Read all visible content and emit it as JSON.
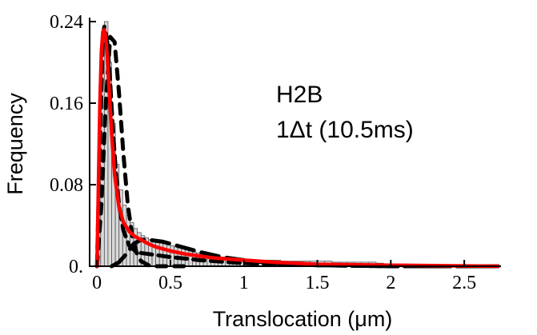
{
  "chart_data": {
    "type": "bar",
    "title": "",
    "xlabel": "Translocation (μm)",
    "ylabel": "Frequency",
    "xlim": [
      -0.05,
      2.75
    ],
    "ylim": [
      0,
      0.24
    ],
    "x_ticks": [
      {
        "value": 0,
        "label": "0"
      },
      {
        "value": 0.5,
        "label": "0.5"
      },
      {
        "value": 1,
        "label": "1"
      },
      {
        "value": 1.5,
        "label": "1.5"
      },
      {
        "value": 2,
        "label": "2"
      },
      {
        "value": 2.5,
        "label": "2.5"
      }
    ],
    "y_ticks": [
      {
        "value": 0,
        "label": "0."
      },
      {
        "value": 0.08,
        "label": "0.08"
      },
      {
        "value": 0.16,
        "label": "0.16"
      },
      {
        "value": 0.24,
        "label": "0.24"
      }
    ],
    "annotation_lines": [
      "H2B",
      "1Δt (10.5ms)"
    ],
    "colors": {
      "bars_fill": "#d9d9d9",
      "bars_stroke": "#555555",
      "fit_total": "#ff0000",
      "fit_components": "#000000"
    },
    "histogram": {
      "bin_width": 0.025,
      "bin_starts": [
        0.0,
        0.025,
        0.05,
        0.075,
        0.1,
        0.125,
        0.15,
        0.175,
        0.2,
        0.225,
        0.25,
        0.275,
        0.3,
        0.325,
        0.35,
        0.375,
        0.4,
        0.425,
        0.45,
        0.475,
        0.5,
        0.525,
        0.55,
        0.575,
        0.6,
        0.625,
        0.65,
        0.675,
        0.7,
        0.725,
        0.75,
        0.775,
        0.8,
        0.825,
        0.85,
        0.875,
        0.9,
        0.925,
        0.95,
        0.975,
        1.0,
        1.05,
        1.1,
        1.15,
        1.2,
        1.25,
        1.3,
        1.35,
        1.4,
        1.45,
        1.5,
        1.55,
        1.6,
        1.65,
        1.7,
        1.75,
        1.8,
        1.85,
        1.9,
        1.95,
        2.0,
        2.1,
        2.2,
        2.3,
        2.4,
        2.5,
        2.6,
        2.7
      ],
      "frequencies": [
        0.06,
        0.2,
        0.24,
        0.2,
        0.14,
        0.1,
        0.075,
        0.06,
        0.05,
        0.043,
        0.037,
        0.033,
        0.03,
        0.028,
        0.026,
        0.025,
        0.024,
        0.023,
        0.022,
        0.021,
        0.02,
        0.019,
        0.018,
        0.017,
        0.016,
        0.015,
        0.014,
        0.013,
        0.012,
        0.011,
        0.011,
        0.01,
        0.01,
        0.009,
        0.009,
        0.009,
        0.008,
        0.008,
        0.008,
        0.007,
        0.007,
        0.006,
        0.006,
        0.006,
        0.006,
        0.005,
        0.005,
        0.005,
        0.005,
        0.005,
        0.005,
        0.005,
        0.004,
        0.004,
        0.004,
        0.004,
        0.004,
        0.004,
        0.003,
        0.002,
        0.002,
        0.002,
        0.001,
        0.001,
        0.001,
        0.001,
        0.001,
        0.001
      ]
    },
    "series": [
      {
        "style": "dashed-black-1",
        "x": [
          0,
          0.02,
          0.04,
          0.05,
          0.07,
          0.09,
          0.11,
          0.13,
          0.15,
          0.18,
          0.22,
          0.26,
          0.3,
          0.35,
          0.4,
          0.5,
          0.7,
          1.0,
          1.5,
          2.0,
          2.73
        ],
        "y": [
          0,
          0.12,
          0.225,
          0.235,
          0.22,
          0.18,
          0.13,
          0.09,
          0.06,
          0.035,
          0.02,
          0.015,
          0.013,
          0.012,
          0.011,
          0.009,
          0.006,
          0.003,
          0.001,
          0.0,
          0.0
        ]
      },
      {
        "style": "dashed-black-2",
        "x": [
          0,
          0.03,
          0.06,
          0.09,
          0.12,
          0.15,
          0.18,
          0.21,
          0.24,
          0.27,
          0.3,
          0.35,
          0.4,
          0.5,
          0.6
        ],
        "y": [
          0,
          0.06,
          0.16,
          0.225,
          0.22,
          0.17,
          0.11,
          0.06,
          0.03,
          0.013,
          0.005,
          0.001,
          0.0,
          0.0,
          0.0
        ]
      },
      {
        "style": "dashed-black-3",
        "x": [
          0.1,
          0.15,
          0.2,
          0.25,
          0.3,
          0.35,
          0.45,
          0.55,
          0.7,
          0.85,
          1.0,
          1.2,
          1.5,
          2.0,
          2.73
        ],
        "y": [
          0.0,
          0.004,
          0.012,
          0.022,
          0.026,
          0.026,
          0.024,
          0.02,
          0.014,
          0.009,
          0.006,
          0.003,
          0.001,
          0.0,
          0.0
        ]
      },
      {
        "style": "solid-red",
        "x": [
          0,
          0.01,
          0.02,
          0.03,
          0.04,
          0.05,
          0.06,
          0.07,
          0.08,
          0.1,
          0.12,
          0.15,
          0.18,
          0.22,
          0.26,
          0.3,
          0.35,
          0.4,
          0.5,
          0.6,
          0.7,
          0.8,
          1.0,
          1.2,
          1.5,
          2.0,
          2.73
        ],
        "y": [
          0,
          0.08,
          0.16,
          0.21,
          0.23,
          0.232,
          0.225,
          0.205,
          0.18,
          0.13,
          0.09,
          0.058,
          0.043,
          0.034,
          0.029,
          0.026,
          0.022,
          0.019,
          0.015,
          0.012,
          0.01,
          0.008,
          0.006,
          0.004,
          0.002,
          0.001,
          0.0
        ]
      }
    ]
  }
}
